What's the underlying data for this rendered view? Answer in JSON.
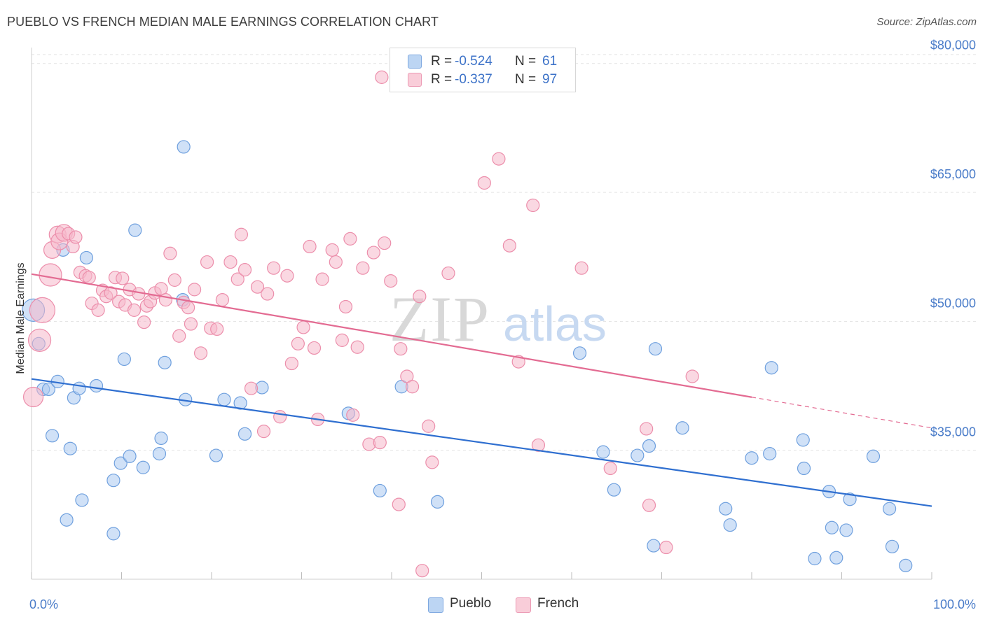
{
  "header": {
    "title": "PUEBLO VS FRENCH MEDIAN MALE EARNINGS CORRELATION CHART",
    "source": "Source: ZipAtlas.com"
  },
  "watermark": {
    "zip": "ZIP",
    "atlas": "atlas"
  },
  "legend": {
    "rows": [
      {
        "r_label": "R =",
        "r_value": "-0.524",
        "n_label": "N =",
        "n_value": "61",
        "color": "#a9c8f0"
      },
      {
        "r_label": "R =",
        "r_value": "-0.337",
        "n_label": "N =",
        "n_value": "97",
        "color": "#f5b8ca"
      }
    ]
  },
  "bottom_legend": [
    {
      "label": "Pueblo",
      "color": "#a9c8f0"
    },
    {
      "label": "French",
      "color": "#f5b8ca"
    }
  ],
  "chart_data": {
    "type": "scatter",
    "title": "PUEBLO VS FRENCH MEDIAN MALE EARNINGS CORRELATION CHART",
    "xlabel": "",
    "ylabel": "Median Male Earnings",
    "xlim": [
      0,
      100
    ],
    "ylim": [
      20000,
      82500
    ],
    "x_tick_labels": [
      {
        "value": 0,
        "label": "0.0%"
      },
      {
        "value": 100,
        "label": "100.0%"
      }
    ],
    "y_ticks": [
      {
        "value": 35000,
        "label": "$35,000"
      },
      {
        "value": 50000,
        "label": "$50,000"
      },
      {
        "value": 65000,
        "label": "$65,000"
      },
      {
        "value": 80000,
        "label": "$80,000"
      }
    ],
    "x_minor_ticks": [
      0,
      10,
      20,
      30,
      40,
      50,
      60,
      70,
      80,
      90,
      100
    ],
    "grid": true,
    "series": [
      {
        "name": "Pueblo",
        "color": "#a9c8f0",
        "stroke": "#6fa0de",
        "trend": {
          "x": [
            0,
            100
          ],
          "y": [
            43300,
            28500
          ],
          "color": "#2f6fd0",
          "dashed_from": null
        },
        "points": [
          [
            0.2,
            51300,
            16
          ],
          [
            0.8,
            47400,
            9
          ],
          [
            1.3,
            42100,
            9
          ],
          [
            1.9,
            42100,
            9
          ],
          [
            2.3,
            36700,
            9
          ],
          [
            2.9,
            43000,
            9
          ],
          [
            3.5,
            58300,
            9
          ],
          [
            3.9,
            26900,
            9
          ],
          [
            4.3,
            35200,
            9
          ],
          [
            4.7,
            41100,
            9
          ],
          [
            5.3,
            42200,
            9
          ],
          [
            5.6,
            29200,
            9
          ],
          [
            6.1,
            57400,
            9
          ],
          [
            7.2,
            42500,
            9
          ],
          [
            9.1,
            31500,
            9
          ],
          [
            9.1,
            25300,
            9
          ],
          [
            9.9,
            33500,
            9
          ],
          [
            10.3,
            45600,
            9
          ],
          [
            10.9,
            34300,
            9
          ],
          [
            11.5,
            60600,
            9
          ],
          [
            12.4,
            33000,
            9
          ],
          [
            14.2,
            34600,
            9
          ],
          [
            14.4,
            36400,
            9
          ],
          [
            14.8,
            45200,
            9
          ],
          [
            16.9,
            70300,
            9
          ],
          [
            17.1,
            40900,
            9
          ],
          [
            16.8,
            52500,
            9
          ],
          [
            20.5,
            34400,
            9
          ],
          [
            21.4,
            40900,
            9
          ],
          [
            23.2,
            40500,
            9
          ],
          [
            23.7,
            36900,
            9
          ],
          [
            25.6,
            42300,
            9
          ],
          [
            35.2,
            39300,
            9
          ],
          [
            38.7,
            30300,
            9
          ],
          [
            41.1,
            42400,
            9
          ],
          [
            45.1,
            29000,
            9
          ],
          [
            60.9,
            46300,
            9
          ],
          [
            63.5,
            34800,
            9
          ],
          [
            64.7,
            30400,
            9
          ],
          [
            67.3,
            34400,
            9
          ],
          [
            68.6,
            35500,
            9
          ],
          [
            69.3,
            46800,
            9
          ],
          [
            69.1,
            23900,
            9
          ],
          [
            72.3,
            37600,
            9
          ],
          [
            77.1,
            28200,
            9
          ],
          [
            77.6,
            26300,
            9
          ],
          [
            80.0,
            34100,
            9
          ],
          [
            82.0,
            34600,
            9
          ],
          [
            82.2,
            44600,
            9
          ],
          [
            85.7,
            36200,
            9
          ],
          [
            85.8,
            32900,
            9
          ],
          [
            87.0,
            22400,
            9
          ],
          [
            88.6,
            30200,
            9
          ],
          [
            88.9,
            26000,
            9
          ],
          [
            89.4,
            22500,
            9
          ],
          [
            90.5,
            25700,
            9
          ],
          [
            90.9,
            29300,
            9
          ],
          [
            93.5,
            34300,
            9
          ],
          [
            95.3,
            28200,
            9
          ],
          [
            95.6,
            23800,
            9
          ],
          [
            97.1,
            21600,
            9
          ]
        ]
      },
      {
        "name": "French",
        "color": "#f5b8ca",
        "stroke": "#ec8eab",
        "trend": {
          "x": [
            0,
            100
          ],
          "y": [
            55500,
            37600
          ],
          "color": "#e36b92",
          "dashed_from": 80
        },
        "points": [
          [
            0.2,
            41200,
            14
          ],
          [
            0.9,
            47800,
            16
          ],
          [
            1.2,
            51300,
            18
          ],
          [
            2.1,
            55400,
            16
          ],
          [
            2.3,
            58300,
            12
          ],
          [
            2.9,
            60100,
            12
          ],
          [
            3.1,
            59300,
            12
          ],
          [
            3.6,
            60300,
            12
          ],
          [
            4.1,
            60200,
            9
          ],
          [
            4.6,
            58700,
            9
          ],
          [
            4.9,
            59800,
            9
          ],
          [
            5.4,
            55700,
            9
          ],
          [
            6.0,
            55300,
            9
          ],
          [
            6.4,
            55100,
            9
          ],
          [
            6.7,
            52100,
            9
          ],
          [
            7.4,
            51300,
            9
          ],
          [
            7.9,
            53600,
            9
          ],
          [
            8.3,
            52900,
            9
          ],
          [
            8.8,
            53300,
            9
          ],
          [
            9.3,
            55100,
            9
          ],
          [
            9.7,
            52300,
            9
          ],
          [
            10.1,
            55000,
            9
          ],
          [
            10.4,
            51900,
            9
          ],
          [
            10.9,
            53700,
            9
          ],
          [
            11.4,
            51300,
            9
          ],
          [
            11.9,
            53200,
            9
          ],
          [
            12.5,
            49900,
            9
          ],
          [
            12.8,
            51800,
            9
          ],
          [
            13.2,
            52300,
            9
          ],
          [
            13.7,
            53300,
            9
          ],
          [
            14.4,
            53800,
            9
          ],
          [
            14.9,
            52500,
            9
          ],
          [
            15.4,
            57900,
            9
          ],
          [
            15.9,
            54800,
            9
          ],
          [
            16.4,
            48300,
            9
          ],
          [
            16.9,
            52200,
            9
          ],
          [
            17.4,
            51600,
            9
          ],
          [
            17.7,
            49700,
            9
          ],
          [
            18.1,
            53700,
            9
          ],
          [
            18.8,
            46300,
            9
          ],
          [
            19.5,
            56900,
            9
          ],
          [
            19.9,
            49200,
            9
          ],
          [
            20.6,
            49100,
            9
          ],
          [
            21.2,
            52500,
            9
          ],
          [
            22.1,
            56900,
            9
          ],
          [
            22.9,
            54900,
            9
          ],
          [
            23.3,
            60100,
            9
          ],
          [
            23.7,
            56000,
            9
          ],
          [
            24.4,
            42200,
            9
          ],
          [
            25.1,
            54000,
            9
          ],
          [
            25.8,
            37200,
            9
          ],
          [
            26.2,
            53200,
            9
          ],
          [
            26.9,
            56200,
            9
          ],
          [
            27.6,
            38900,
            9
          ],
          [
            28.4,
            55300,
            9
          ],
          [
            28.9,
            45100,
            9
          ],
          [
            29.6,
            47400,
            9
          ],
          [
            30.2,
            49300,
            9
          ],
          [
            30.9,
            58700,
            9
          ],
          [
            31.4,
            46900,
            9
          ],
          [
            31.8,
            38600,
            9
          ],
          [
            32.3,
            54900,
            9
          ],
          [
            33.4,
            58300,
            9
          ],
          [
            33.8,
            56900,
            9
          ],
          [
            34.5,
            47800,
            9
          ],
          [
            34.9,
            51700,
            9
          ],
          [
            35.4,
            59600,
            9
          ],
          [
            35.7,
            39100,
            9
          ],
          [
            36.2,
            47000,
            9
          ],
          [
            36.8,
            56200,
            9
          ],
          [
            37.5,
            35700,
            9
          ],
          [
            38.0,
            58000,
            9
          ],
          [
            38.7,
            35900,
            9
          ],
          [
            38.9,
            78400,
            9
          ],
          [
            39.2,
            59100,
            9
          ],
          [
            39.9,
            54700,
            9
          ],
          [
            41.0,
            46800,
            9
          ],
          [
            41.7,
            43600,
            9
          ],
          [
            42.3,
            42400,
            9
          ],
          [
            43.1,
            52900,
            9
          ],
          [
            43.4,
            21000,
            9
          ],
          [
            44.1,
            37800,
            9
          ],
          [
            44.5,
            33600,
            9
          ],
          [
            46.3,
            55600,
            9
          ],
          [
            50.3,
            66100,
            9
          ],
          [
            51.9,
            68900,
            9
          ],
          [
            53.1,
            58800,
            9
          ],
          [
            54.1,
            45300,
            9
          ],
          [
            55.7,
            63500,
            9
          ],
          [
            56.3,
            35600,
            9
          ],
          [
            61.1,
            56200,
            9
          ],
          [
            64.3,
            32900,
            9
          ],
          [
            68.3,
            37500,
            9
          ],
          [
            68.6,
            28600,
            9
          ],
          [
            70.5,
            23700,
            9
          ],
          [
            73.4,
            43600,
            9
          ],
          [
            40.8,
            28700,
            9
          ]
        ]
      }
    ]
  }
}
